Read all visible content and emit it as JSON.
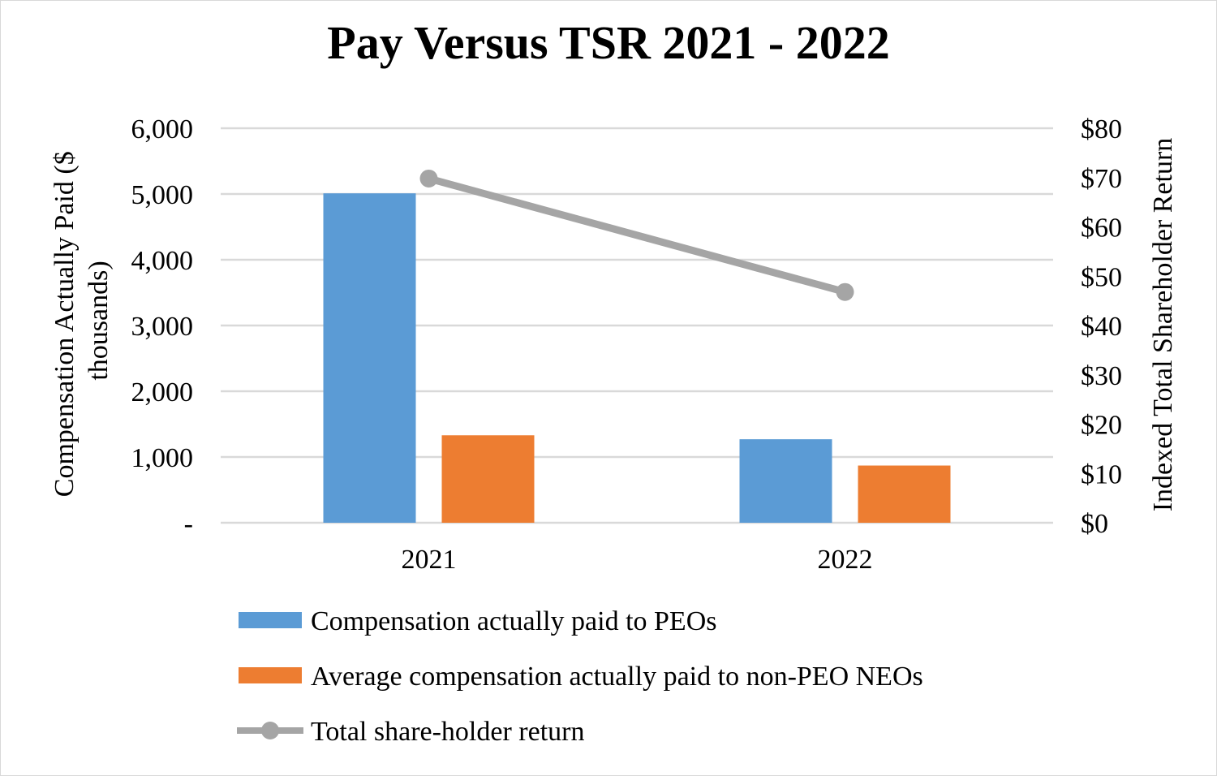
{
  "chart_data": {
    "type": "bar",
    "title": "Pay Versus TSR 2021 - 2022",
    "categories": [
      "2021",
      "2022"
    ],
    "ylabel": "Compensation Actually Paid ($ thousands)",
    "ylabel_lines": [
      "Compensation Actually Paid ($",
      "thousands)"
    ],
    "y2label": "Indexed Total Shareholder Return",
    "ylim": [
      0,
      6000
    ],
    "y2lim": [
      0,
      80
    ],
    "y_ticks": [
      "-",
      "1,000",
      "2,000",
      "3,000",
      "4,000",
      "5,000",
      "6,000"
    ],
    "y2_ticks": [
      "$0",
      "$10",
      "$20",
      "$30",
      "$40",
      "$50",
      "$60",
      "$70",
      "$80"
    ],
    "grid": true,
    "legend_position": "bottom",
    "series": [
      {
        "name": "Compensation actually paid to PEOs",
        "type": "bar",
        "axis": "left",
        "color": "#5b9bd5",
        "values": [
          5010,
          1270
        ]
      },
      {
        "name": "Average compensation actually paid to non-PEO NEOs",
        "type": "bar",
        "axis": "left",
        "color": "#ed7d31",
        "values": [
          1330,
          870
        ]
      },
      {
        "name": "Total share-holder return",
        "type": "line",
        "axis": "right",
        "color": "#a5a5a5",
        "values": [
          69.8,
          46.8
        ]
      }
    ]
  }
}
